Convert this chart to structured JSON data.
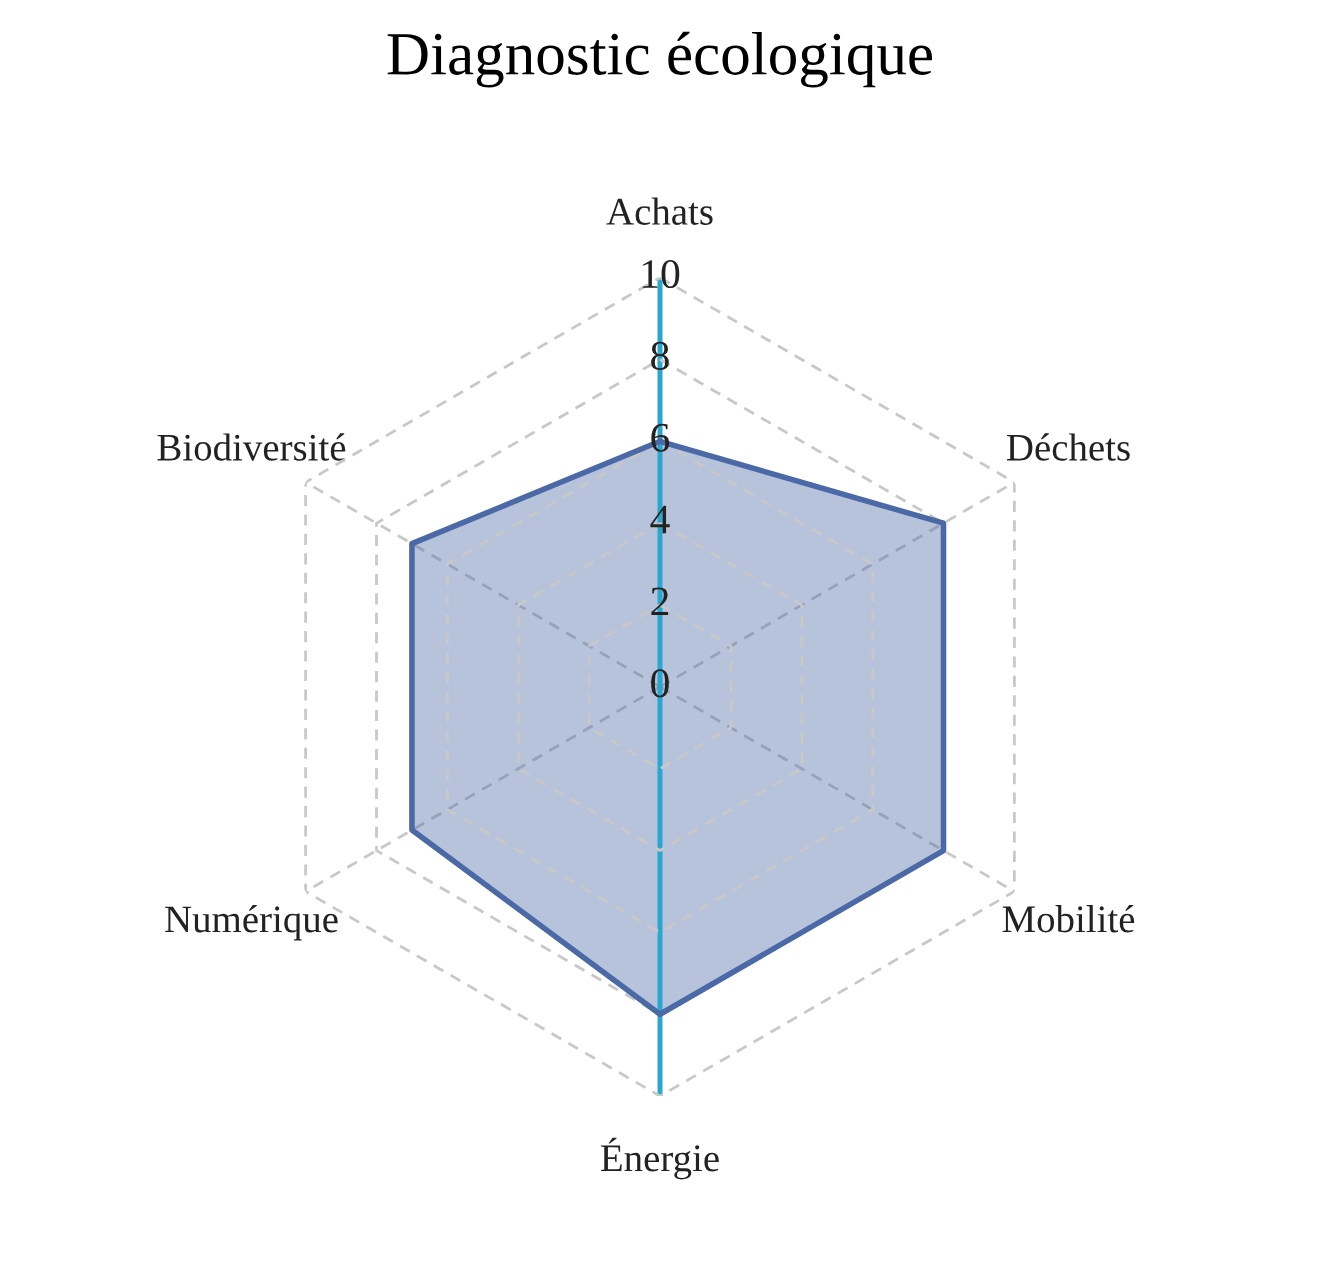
{
  "chart_data": {
    "type": "radar",
    "title": "Diagnostic écologique",
    "categories": [
      "Achats",
      "Déchets",
      "Mobilité",
      "Énergie",
      "Numérique",
      "Biodiversité"
    ],
    "series": [
      {
        "color": "#4a69a6",
        "values": [
          6,
          8,
          8,
          8,
          7,
          7
        ]
      }
    ],
    "ylim": [
      0,
      10
    ],
    "yticks": [
      0,
      2,
      4,
      6,
      8,
      10
    ],
    "grid": true
  }
}
